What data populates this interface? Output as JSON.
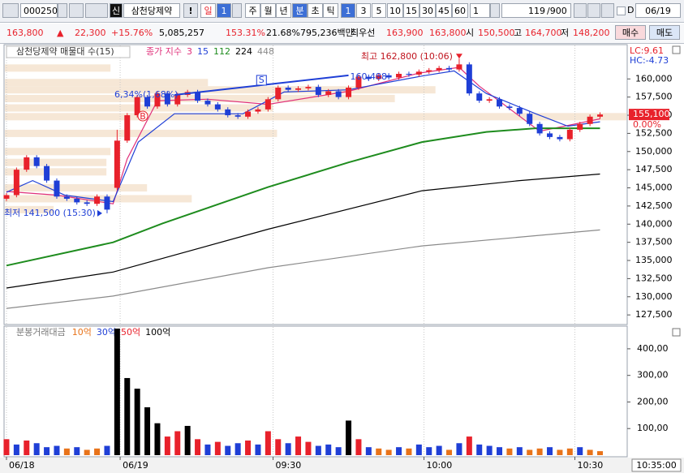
{
  "toolbar": {
    "code": "000250",
    "market_badge": "신",
    "name": "삼천당제약",
    "alert": "!",
    "period_day": "일",
    "period_day_count": "1",
    "periods": [
      "주",
      "월",
      "년",
      "분",
      "초",
      "틱"
    ],
    "intervals": [
      "1",
      "3",
      "5",
      "10",
      "15",
      "30",
      "45",
      "60"
    ],
    "interval_input": "1",
    "count": "119",
    "count_max": "/900",
    "d_label": "D",
    "date": "06/19"
  },
  "info_bar": {
    "price": "163,800",
    "direction": "▲",
    "change": "22,300",
    "change_pct": "+15.76%",
    "volume": "5,085,257",
    "volume_ratio": "153.31%",
    "turnover": "21.68%",
    "amount": "795,236백만",
    "best_label": "최우선",
    "best_ask": "163,900",
    "best_bid": "163,800",
    "open_label": "시",
    "open": "150,500",
    "high_label": "고",
    "high": "164,700",
    "low_label": "저",
    "low": "148,200",
    "buy": "매수",
    "sell": "매도"
  },
  "chart_data": [
    {
      "type": "candlestick",
      "title": "삼천당제약 매물대 수(15)",
      "legend_title": "종가 지수",
      "up_color": "#e8212b",
      "down_color": "#1f3fd6",
      "open": [
        143500,
        144000,
        147500,
        149200,
        148000,
        146000,
        143800,
        143500,
        143000,
        142800,
        143800,
        145000,
        151500,
        155000,
        157500,
        156200,
        158000,
        156500,
        157800,
        158200,
        157000,
        156500,
        155800,
        155000,
        154800,
        155500,
        155800,
        157200,
        158800,
        158500,
        158700,
        158900,
        157800,
        158300,
        157500,
        158800,
        160300,
        160000,
        160500,
        160200,
        160700,
        160600,
        161000,
        161200,
        161500,
        161300,
        162000,
        158000,
        157000,
        157200,
        156200,
        156000,
        155200,
        153800,
        152500,
        152000,
        151700,
        153000,
        153800,
        154800
      ],
      "high": [
        144300,
        147800,
        149500,
        149500,
        148300,
        146300,
        144100,
        143800,
        143300,
        144100,
        144100,
        153000,
        155300,
        157800,
        157800,
        158300,
        158300,
        158100,
        158500,
        158500,
        157300,
        156800,
        156100,
        155300,
        155800,
        156100,
        157500,
        159100,
        159100,
        159000,
        159200,
        159200,
        158600,
        158600,
        159100,
        160600,
        160600,
        160800,
        160800,
        161000,
        161000,
        161300,
        161500,
        161800,
        161800,
        162800,
        162300,
        158300,
        157500,
        157500,
        156500,
        156300,
        155500,
        154100,
        152800,
        152300,
        153300,
        154100,
        155100,
        155400
      ],
      "low": [
        143200,
        143700,
        147200,
        147700,
        145700,
        143500,
        143200,
        142700,
        142500,
        142500,
        141500,
        144700,
        151200,
        154700,
        155900,
        155900,
        156200,
        156200,
        157500,
        156700,
        156200,
        155500,
        154700,
        154500,
        154500,
        155200,
        155500,
        156900,
        158200,
        158200,
        158400,
        157500,
        157500,
        157200,
        157200,
        158500,
        159700,
        159700,
        159900,
        159900,
        160300,
        160300,
        160700,
        160900,
        161000,
        161000,
        157700,
        156700,
        156700,
        155900,
        155700,
        154900,
        153500,
        152200,
        151700,
        151400,
        151400,
        152700,
        153500,
        154500
      ],
      "close": [
        144000,
        147500,
        149200,
        148000,
        146000,
        143800,
        143500,
        143000,
        142800,
        143800,
        142000,
        151500,
        155000,
        157500,
        156200,
        158000,
        156500,
        157800,
        158200,
        157000,
        156500,
        155800,
        155000,
        154800,
        155500,
        155800,
        157200,
        158800,
        158500,
        158700,
        158900,
        157800,
        158300,
        157500,
        158800,
        160300,
        160000,
        160500,
        160200,
        160700,
        160600,
        161000,
        161200,
        161500,
        161300,
        162000,
        158000,
        157000,
        157200,
        156200,
        156000,
        155200,
        153800,
        152500,
        152000,
        151700,
        153000,
        153800,
        154800,
        155100
      ],
      "xlim": [
        -0.24,
        61.7
      ],
      "ylim": [
        126400,
        164500
      ],
      "yticks": [
        {
          "value": 160000,
          "label": "160,000"
        },
        {
          "value": 157500,
          "label": "157,500"
        },
        {
          "value": 155000,
          "label": "155,000"
        },
        {
          "value": 152500,
          "label": "152,500"
        },
        {
          "value": 150000,
          "label": "150,000"
        },
        {
          "value": 147500,
          "label": "147,500"
        },
        {
          "value": 145000,
          "label": "145,000"
        },
        {
          "value": 142500,
          "label": "142,500"
        },
        {
          "value": 140000,
          "label": "140,000"
        },
        {
          "value": 137500,
          "label": "137,500"
        },
        {
          "value": 135000,
          "label": "135,000"
        },
        {
          "value": 132500,
          "label": "132,500"
        },
        {
          "value": 130000,
          "label": "130,000"
        },
        {
          "value": 127500,
          "label": "127,500"
        }
      ],
      "moving_averages": [
        {
          "name": "3",
          "color": "#e0307a",
          "x": [
            0,
            5,
            10.6,
            12,
            15,
            20,
            26,
            34,
            41,
            45,
            47,
            53,
            59
          ],
          "values": [
            144500,
            144000,
            142800,
            149000,
            157000,
            157200,
            156500,
            158300,
            160800,
            161600,
            159000,
            152800,
            154500
          ]
        },
        {
          "name": "15",
          "color": "#1f3fd6",
          "x": [
            0,
            2.6,
            5.8,
            10.6,
            13.1,
            16.7,
            23.5,
            27.6,
            34,
            41.3,
            44.5,
            47.7,
            52.6,
            55.8,
            59
          ],
          "values": [
            144400,
            146000,
            144000,
            143100,
            151300,
            155200,
            155200,
            158200,
            158500,
            160400,
            161100,
            158000,
            155200,
            153500,
            154100
          ]
        },
        {
          "name": "112",
          "color": "#1e8c1e",
          "x": [
            0,
            10.6,
            15.5,
            26,
            34,
            41.3,
            47.7,
            52.6,
            59
          ],
          "values": [
            134300,
            137500,
            140100,
            145100,
            148500,
            151300,
            152700,
            153200,
            153200
          ]
        },
        {
          "name": "224",
          "color": "#000000",
          "x": [
            0,
            10.6,
            26,
            41.3,
            51,
            59
          ],
          "values": [
            131200,
            133400,
            139300,
            144600,
            146000,
            146900
          ]
        },
        {
          "name": "448",
          "color": "#8a8a8a",
          "x": [
            0,
            10.6,
            26,
            41.3,
            59
          ],
          "values": [
            128400,
            130100,
            134000,
            137000,
            139200
          ]
        }
      ],
      "volume_profile": {
        "color": "#f6e7d6",
        "prices": [
          161500,
          159500,
          158500,
          157300,
          156000,
          154800,
          152500,
          150000,
          148500,
          147200,
          145000,
          143500,
          142000
        ],
        "values": [
          130,
          250,
          530,
          480,
          330,
          765,
          335,
          130,
          125,
          125,
          175,
          230,
          60
        ]
      },
      "trendline": {
        "color": "#1f3fd6",
        "x": [
          16.7,
          34
        ],
        "values": [
          157800,
          160488
        ],
        "label": "160,488",
        "marker": "S"
      },
      "buy_marker": "B",
      "high_label": "최고 162,800 (10:06)",
      "low_label": "최저 141,500 (15:30)",
      "change_label": "6,34%(1,68%)",
      "lc": "LC:9.61",
      "hc": "HC:-4.73",
      "last_price": {
        "value": 155100,
        "label": "155,100"
      },
      "last_change": "0.00%"
    },
    {
      "type": "bar",
      "title": "분봉거래대금",
      "base_color": "#a0a0a0",
      "thresholds": [
        {
          "value": 10,
          "label": "10억",
          "color": "#e8731a"
        },
        {
          "value": 30,
          "label": "30억",
          "color": "#1f3fd6"
        },
        {
          "value": 50,
          "label": "50억",
          "color": "#e8212b"
        },
        {
          "value": 100,
          "label": "100억",
          "color": "#000000"
        }
      ],
      "values": [
        60,
        40,
        55,
        45,
        30,
        35,
        25,
        30,
        20,
        25,
        35,
        476,
        290,
        250,
        180,
        120,
        70,
        90,
        110,
        60,
        40,
        50,
        35,
        45,
        55,
        40,
        90,
        60,
        45,
        70,
        50,
        35,
        40,
        30,
        130,
        60,
        30,
        25,
        20,
        30,
        25,
        40,
        30,
        35,
        20,
        45,
        70,
        40,
        35,
        30,
        25,
        30,
        20,
        25,
        30,
        20,
        25,
        30,
        20,
        15
      ],
      "xlim": [
        -0.24,
        61.7
      ],
      "ylim": [
        0,
        476
      ],
      "yticks": [
        {
          "value": 100,
          "label": "100,00"
        },
        {
          "value": 200,
          "label": "200,00"
        },
        {
          "value": 300,
          "label": "300,00"
        },
        {
          "value": 400,
          "label": "400,00"
        }
      ],
      "xticks": [
        {
          "value": 0,
          "label": "06/18"
        },
        {
          "value": 11.3,
          "label": "06/19"
        },
        {
          "value": 26.5,
          "label": "09:30"
        },
        {
          "value": 41.5,
          "label": "10:00"
        },
        {
          "value": 56.5,
          "label": "10:30"
        }
      ],
      "cursor_time": "10:35:00"
    }
  ]
}
